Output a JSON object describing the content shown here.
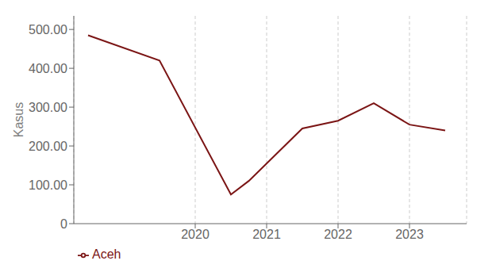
{
  "chart_data": {
    "type": "line",
    "y_label": "Kasus",
    "x": [
      2018.5,
      2019.5,
      2020.5,
      2020.75,
      2021.5,
      2022.0,
      2022.5,
      2023.0,
      2023.5
    ],
    "series": [
      {
        "name": "Aceh",
        "color": "#7B1515",
        "values": [
          485,
          420,
          75,
          110,
          245,
          265,
          310,
          255,
          240
        ]
      }
    ],
    "xlim": [
      2018.3,
      2023.8
    ],
    "xticks": [
      2020,
      2021,
      2022,
      2023
    ],
    "ylim": [
      0,
      535
    ],
    "yticks": [
      0,
      {
        "value": 100,
        "label": "100.00"
      },
      {
        "value": 200,
        "label": "200.00"
      },
      {
        "value": 300,
        "label": "300.00"
      },
      {
        "value": 400,
        "label": "400.00"
      },
      {
        "value": 500,
        "label": "500.00"
      }
    ],
    "grid": "x",
    "legend": "bottom"
  }
}
